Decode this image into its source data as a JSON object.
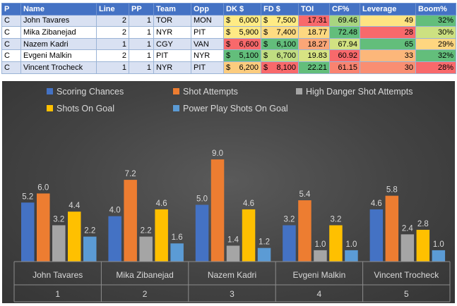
{
  "table": {
    "headers": [
      "P",
      "Name",
      "Line",
      "PP",
      "Team",
      "Opp",
      "DK $",
      "FD $",
      "TOI",
      "CF%",
      "Leverage",
      "Boom%"
    ],
    "rows": [
      {
        "pos": "C",
        "name": "John Tavares",
        "line": "2",
        "pp": "1",
        "team": "TOR",
        "opp": "MON",
        "dk": "6,000",
        "fd": "7,500",
        "toi": "17.31",
        "cf": "69.46",
        "leverage": "49",
        "boom": "32%"
      },
      {
        "pos": "C",
        "name": "Mika Zibanejad",
        "line": "2",
        "pp": "1",
        "team": "NYR",
        "opp": "PIT",
        "dk": "5,900",
        "fd": "7,400",
        "toi": "18.77",
        "cf": "72.48",
        "leverage": "28",
        "boom": "30%"
      },
      {
        "pos": "C",
        "name": "Nazem Kadri",
        "line": "1",
        "pp": "1",
        "team": "CGY",
        "opp": "VAN",
        "dk": "6,600",
        "fd": "6,100",
        "toi": "18.27",
        "cf": "67.94",
        "leverage": "65",
        "boom": "29%"
      },
      {
        "pos": "C",
        "name": "Evgeni Malkin",
        "line": "2",
        "pp": "1",
        "team": "PIT",
        "opp": "NYR",
        "dk": "5,100",
        "fd": "6,700",
        "toi": "19.83",
        "cf": "60.92",
        "leverage": "33",
        "boom": "32%"
      },
      {
        "pos": "C",
        "name": "Vincent Trocheck",
        "line": "1",
        "pp": "1",
        "team": "NYR",
        "opp": "PIT",
        "dk": "6,200",
        "fd": "8,100",
        "toi": "22.21",
        "cf": "61.15",
        "leverage": "30",
        "boom": "28%"
      }
    ],
    "currency_symbol": "$",
    "cell_colors": {
      "dk": [
        "#ffeb84",
        "#ffe984",
        "#f8696b",
        "#63be7b",
        "#fccc7e"
      ],
      "fd": [
        "#ffeb84",
        "#fddc82",
        "#63be7b",
        "#c0dd81",
        "#f8696b"
      ],
      "toi": [
        "#f8696b",
        "#fed880",
        "#fba677",
        "#d7e383",
        "#63be7b"
      ],
      "cf": [
        "#a8d580",
        "#63be7b",
        "#d2e282",
        "#f8696b",
        "#f98370"
      ],
      "leverage": [
        "#fee382",
        "#f8696b",
        "#63be7b",
        "#fcb77a",
        "#f98e72"
      ],
      "boom": [
        "#63be7b",
        "#cde181",
        "#fed680",
        "#63be7b",
        "#f8696b"
      ]
    }
  },
  "chart_data": {
    "type": "bar",
    "categories": [
      {
        "name": "John Tavares",
        "rank": "1"
      },
      {
        "name": "Mika Zibanejad",
        "rank": "2"
      },
      {
        "name": "Nazem Kadri",
        "rank": "3"
      },
      {
        "name": "Evgeni Malkin",
        "rank": "4"
      },
      {
        "name": "Vincent Trocheck",
        "rank": "5"
      }
    ],
    "series": [
      {
        "name": "Scoring Chances",
        "color": "#4472c4",
        "values": [
          5.2,
          4.0,
          5.0,
          3.2,
          4.6
        ]
      },
      {
        "name": "Shot Attempts",
        "color": "#ed7d31",
        "values": [
          6.0,
          7.2,
          9.0,
          5.4,
          5.8
        ]
      },
      {
        "name": "High Danger Shot Attempts",
        "color": "#a5a5a5",
        "values": [
          3.2,
          2.2,
          1.4,
          1.0,
          2.4
        ]
      },
      {
        "name": "Shots On Goal",
        "color": "#ffc000",
        "values": [
          4.4,
          4.6,
          4.6,
          3.2,
          2.8
        ]
      },
      {
        "name": "Power Play Shots On Goal",
        "color": "#5b9bd5",
        "values": [
          2.2,
          1.6,
          1.2,
          1.0,
          1.0
        ]
      }
    ],
    "ylim": [
      0,
      10
    ],
    "grid": false,
    "legend": "top-left",
    "title": "",
    "xlabel": "",
    "ylabel": ""
  }
}
